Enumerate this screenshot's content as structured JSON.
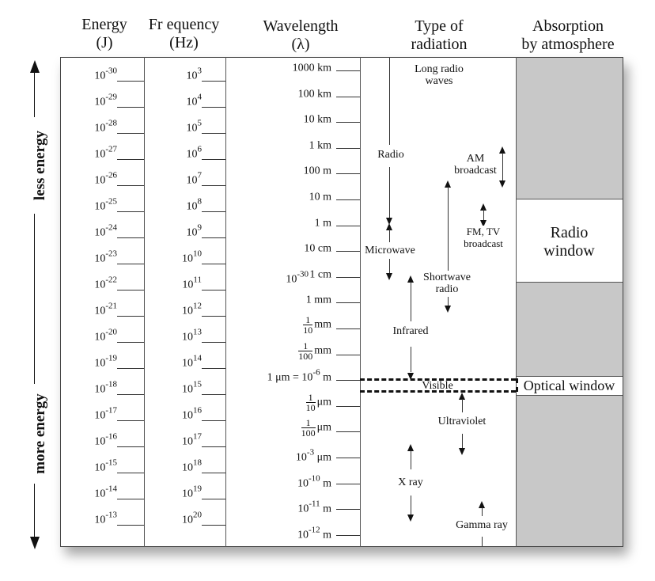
{
  "headers": {
    "energy": [
      "Energy",
      "(J)"
    ],
    "frequency": [
      "Fr equency",
      "(Hz)"
    ],
    "wavelength": [
      "Wavelength",
      "(λ)"
    ],
    "type": [
      "Type of",
      "radiation"
    ],
    "absorption": [
      "Absorption",
      "by atmosphere"
    ]
  },
  "side_arrow": {
    "top_label": "less energy",
    "bottom_label": "more energy"
  },
  "energy_ticks": [
    {
      "base": "10",
      "exp": "-30"
    },
    {
      "base": "10",
      "exp": "-29"
    },
    {
      "base": "10",
      "exp": "-28"
    },
    {
      "base": "10",
      "exp": "-27"
    },
    {
      "base": "10",
      "exp": "-26"
    },
    {
      "base": "10",
      "exp": "-25"
    },
    {
      "base": "10",
      "exp": "-24"
    },
    {
      "base": "10",
      "exp": "-23"
    },
    {
      "base": "10",
      "exp": "-22"
    },
    {
      "base": "10",
      "exp": "-21"
    },
    {
      "base": "10",
      "exp": "-20"
    },
    {
      "base": "10",
      "exp": "-19"
    },
    {
      "base": "10",
      "exp": "-18"
    },
    {
      "base": "10",
      "exp": "-17"
    },
    {
      "base": "10",
      "exp": "-16"
    },
    {
      "base": "10",
      "exp": "-15"
    },
    {
      "base": "10",
      "exp": "-14"
    },
    {
      "base": "10",
      "exp": "-13"
    }
  ],
  "frequency_ticks": [
    {
      "base": "10",
      "exp": "3"
    },
    {
      "base": "10",
      "exp": "4"
    },
    {
      "base": "10",
      "exp": "5"
    },
    {
      "base": "10",
      "exp": "6"
    },
    {
      "base": "10",
      "exp": "7"
    },
    {
      "base": "10",
      "exp": "8"
    },
    {
      "base": "10",
      "exp": "9"
    },
    {
      "base": "10",
      "exp": "10"
    },
    {
      "base": "10",
      "exp": "11"
    },
    {
      "base": "10",
      "exp": "12"
    },
    {
      "base": "10",
      "exp": "13"
    },
    {
      "base": "10",
      "exp": "14"
    },
    {
      "base": "10",
      "exp": "15"
    },
    {
      "base": "10",
      "exp": "16"
    },
    {
      "base": "10",
      "exp": "17"
    },
    {
      "base": "10",
      "exp": "18"
    },
    {
      "base": "10",
      "exp": "19"
    },
    {
      "base": "10",
      "exp": "20"
    }
  ],
  "wavelength_ticks": [
    {
      "type": "text",
      "text": "1000 km"
    },
    {
      "type": "text",
      "text": "100 km"
    },
    {
      "type": "text",
      "text": "10 km"
    },
    {
      "type": "text",
      "text": "1 km"
    },
    {
      "type": "text",
      "text": "100 m"
    },
    {
      "type": "text",
      "text": "10 m"
    },
    {
      "type": "text",
      "text": "1 m"
    },
    {
      "type": "text",
      "text": "10 cm"
    },
    {
      "type": "text",
      "text": "1 cm",
      "stray": {
        "base": "10",
        "exp": "-30"
      }
    },
    {
      "type": "text",
      "text": "1 mm"
    },
    {
      "type": "frac",
      "num": "1",
      "den": "10",
      "unit": "mm"
    },
    {
      "type": "frac",
      "num": "1",
      "den": "100",
      "unit": "mm"
    },
    {
      "type": "eq",
      "pre": "1 μm = 10",
      "exp": "-6",
      "unit": " m"
    },
    {
      "type": "frac",
      "num": "1",
      "den": "10",
      "unit": "μm"
    },
    {
      "type": "frac",
      "num": "1",
      "den": "100",
      "unit": "μm"
    },
    {
      "type": "pow",
      "base": "10",
      "exp": "-3",
      "unit": " μm"
    },
    {
      "type": "pow",
      "base": "10",
      "exp": "-10",
      "unit": " m"
    },
    {
      "type": "pow",
      "base": "10",
      "exp": "-11",
      "unit": " m"
    },
    {
      "type": "pow",
      "base": "10",
      "exp": "-12",
      "unit": " m"
    }
  ],
  "radiation_types": {
    "long_radio": [
      "Long radio",
      "waves"
    ],
    "radio": "Radio",
    "am": [
      "AM",
      "broadcast"
    ],
    "fm": [
      "FM, TV",
      "broadcast"
    ],
    "microwave": "Microwave",
    "shortwave": [
      "Shortwave",
      "radio"
    ],
    "infrared": "Infrared",
    "visible": "Visible",
    "ultraviolet": "Ultraviolet",
    "xray": "X ray",
    "gamma": "Gamma ray"
  },
  "absorption": {
    "radio_window": [
      "Radio",
      "window"
    ],
    "optical_window": "Optical window"
  },
  "colors": {
    "absorbed": "#c8c8c8",
    "window": "#ffffff",
    "lines": "#333333"
  }
}
